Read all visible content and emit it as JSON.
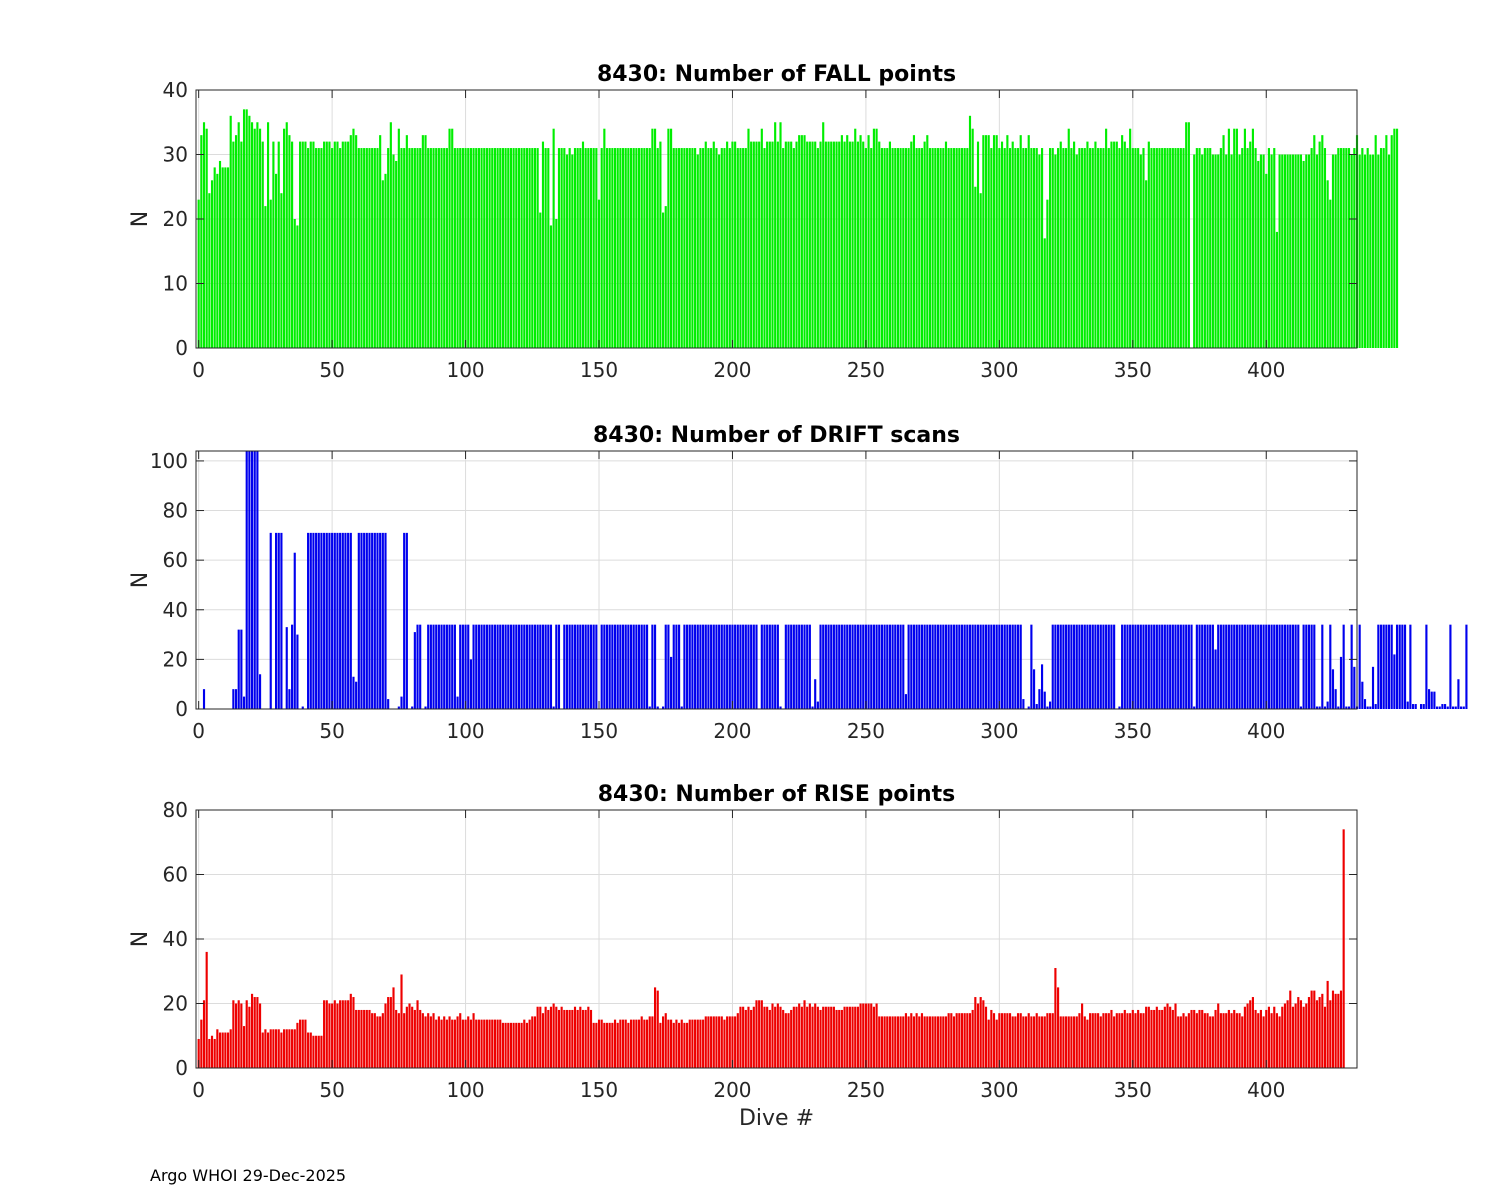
{
  "footer": "Argo WHOI 29-Dec-2025",
  "chart_data": [
    {
      "type": "bar",
      "title": "8430: Number of FALL points",
      "xlabel": "",
      "ylabel": "N",
      "color": "#00ee00",
      "xlim": [
        -1,
        434
      ],
      "ylim": [
        0,
        40
      ],
      "xticks": [
        0,
        50,
        100,
        150,
        200,
        250,
        300,
        350,
        400
      ],
      "yticks": [
        0,
        10,
        20,
        30,
        40
      ],
      "grid": true,
      "x_start": 0,
      "values": [
        23,
        33,
        35,
        34,
        24,
        26,
        28,
        27,
        29,
        28,
        28,
        28,
        36,
        32,
        33,
        35,
        32,
        37,
        37,
        36,
        35,
        34,
        35,
        34,
        32,
        22,
        35,
        23,
        32,
        27,
        32,
        24,
        34,
        35,
        33,
        32,
        20,
        19,
        32,
        32,
        32,
        31,
        32,
        32,
        31,
        31,
        31,
        32,
        32,
        32,
        31,
        32,
        32,
        31,
        32,
        32,
        32,
        33,
        34,
        33,
        31,
        31,
        31,
        31,
        31,
        31,
        31,
        31,
        33,
        26,
        27,
        31,
        35,
        30,
        29,
        34,
        31,
        31,
        33,
        31,
        31,
        31,
        31,
        31,
        33,
        33,
        31,
        31,
        31,
        31,
        31,
        31,
        31,
        31,
        34,
        34,
        31,
        31,
        31,
        31,
        31,
        31,
        31,
        31,
        31,
        31,
        31,
        31,
        31,
        31,
        31,
        31,
        31,
        31,
        31,
        31,
        31,
        31,
        31,
        31,
        31,
        31,
        31,
        31,
        31,
        31,
        31,
        31,
        21,
        32,
        31,
        31,
        19,
        34,
        20,
        31,
        31,
        31,
        30,
        31,
        30,
        31,
        31,
        31,
        32,
        31,
        31,
        31,
        31,
        31,
        23,
        31,
        34,
        31,
        31,
        31,
        31,
        31,
        31,
        31,
        31,
        31,
        31,
        31,
        31,
        31,
        31,
        31,
        31,
        31,
        34,
        34,
        31,
        32,
        21,
        22,
        34,
        34,
        31,
        31,
        31,
        31,
        31,
        31,
        31,
        31,
        31,
        30,
        31,
        31,
        32,
        31,
        31,
        32,
        31,
        30,
        31,
        31,
        32,
        31,
        32,
        32,
        31,
        31,
        31,
        31,
        34,
        32,
        32,
        32,
        32,
        34,
        31,
        32,
        32,
        32,
        35,
        32,
        35,
        31,
        32,
        32,
        32,
        31,
        32,
        33,
        33,
        33,
        32,
        32,
        32,
        32,
        31,
        32,
        35,
        32,
        32,
        32,
        32,
        32,
        32,
        33,
        32,
        33,
        32,
        32,
        34,
        32,
        33,
        32,
        31,
        33,
        31,
        34,
        34,
        32,
        31,
        31,
        31,
        32,
        31,
        31,
        31,
        31,
        31,
        31,
        31,
        32,
        33,
        31,
        31,
        31,
        32,
        33,
        31,
        31,
        31,
        31,
        31,
        31,
        32,
        31,
        31,
        31,
        31,
        31,
        31,
        31,
        31,
        36,
        34,
        25,
        32,
        24,
        33,
        33,
        33,
        31,
        33,
        33,
        31,
        32,
        31,
        33,
        31,
        32,
        31,
        31,
        33,
        31,
        31,
        33,
        31,
        31,
        31,
        30,
        31,
        17,
        23,
        31,
        31,
        30,
        31,
        32,
        31,
        31,
        34,
        31,
        32,
        30,
        31,
        31,
        31,
        32,
        31,
        31,
        32,
        31,
        31,
        31,
        34,
        31,
        32,
        32,
        32,
        31,
        33,
        32,
        31,
        34,
        31,
        31,
        31,
        30,
        31,
        26,
        32,
        31,
        31,
        31,
        31,
        31,
        31,
        31,
        31,
        31,
        31,
        31,
        31,
        31,
        35,
        35,
        0,
        30,
        31,
        31,
        30,
        31,
        31,
        31,
        30,
        30,
        30,
        31,
        33,
        30,
        34,
        30,
        34,
        34,
        30,
        31,
        34,
        31,
        32,
        34,
        31,
        29,
        30,
        30,
        27,
        31,
        30,
        31,
        18,
        30,
        30,
        30,
        30,
        30,
        30,
        30,
        30,
        30,
        29,
        30,
        30,
        31,
        33,
        30,
        32,
        33,
        31,
        26,
        23,
        30,
        30,
        31,
        31,
        31,
        31,
        31,
        30,
        31,
        33,
        30,
        31,
        30,
        31,
        30,
        30,
        33,
        30,
        31,
        31,
        33,
        30,
        33,
        34,
        34
      ]
    },
    {
      "type": "bar",
      "title": "8430: Number of DRIFT scans",
      "xlabel": "",
      "ylabel": "N",
      "color": "#0000ee",
      "xlim": [
        -1,
        434
      ],
      "ylim": [
        0,
        104
      ],
      "xticks": [
        0,
        50,
        100,
        150,
        200,
        250,
        300,
        350,
        400
      ],
      "yticks": [
        0,
        20,
        40,
        60,
        80,
        100
      ],
      "grid": true,
      "x_start": 0,
      "values": [
        0,
        0,
        8,
        0,
        0,
        0,
        0,
        0,
        0,
        0,
        0,
        0,
        0,
        8,
        8,
        32,
        32,
        5,
        104,
        104,
        104,
        104,
        104,
        14,
        0,
        0,
        0,
        71,
        0,
        71,
        71,
        71,
        0,
        33,
        8,
        34,
        63,
        30,
        0,
        1,
        0,
        71,
        71,
        71,
        71,
        71,
        71,
        71,
        71,
        71,
        71,
        71,
        71,
        71,
        71,
        71,
        71,
        71,
        13,
        11,
        71,
        71,
        71,
        71,
        71,
        71,
        71,
        71,
        71,
        71,
        71,
        4,
        0,
        0,
        0,
        1,
        5,
        71,
        71,
        0,
        1,
        31,
        34,
        34,
        0,
        1,
        34,
        34,
        34,
        34,
        34,
        34,
        34,
        34,
        34,
        34,
        34,
        5,
        34,
        34,
        34,
        34,
        20,
        34,
        34,
        34,
        34,
        34,
        34,
        34,
        34,
        34,
        34,
        34,
        34,
        34,
        34,
        34,
        34,
        34,
        34,
        34,
        34,
        34,
        34,
        34,
        34,
        34,
        34,
        34,
        34,
        34,
        34,
        1,
        34,
        34,
        0,
        34,
        34,
        34,
        34,
        34,
        34,
        34,
        34,
        34,
        34,
        34,
        34,
        34,
        0,
        34,
        34,
        34,
        34,
        34,
        34,
        34,
        34,
        34,
        34,
        34,
        34,
        34,
        34,
        34,
        34,
        34,
        34,
        1,
        34,
        34,
        1,
        0,
        1,
        34,
        34,
        21,
        34,
        34,
        34,
        1,
        34,
        34,
        34,
        34,
        34,
        34,
        34,
        34,
        34,
        34,
        34,
        34,
        34,
        34,
        34,
        34,
        34,
        34,
        34,
        34,
        34,
        34,
        34,
        34,
        34,
        34,
        34,
        34,
        0,
        34,
        34,
        34,
        34,
        34,
        34,
        34,
        1,
        0,
        34,
        34,
        34,
        34,
        34,
        34,
        34,
        34,
        34,
        34,
        1,
        12,
        3,
        34,
        34,
        34,
        34,
        34,
        34,
        34,
        34,
        34,
        34,
        34,
        34,
        34,
        34,
        34,
        34,
        34,
        34,
        34,
        34,
        34,
        34,
        34,
        34,
        34,
        34,
        34,
        34,
        34,
        34,
        34,
        34,
        6,
        34,
        34,
        34,
        34,
        34,
        34,
        34,
        34,
        34,
        34,
        34,
        34,
        34,
        34,
        34,
        34,
        34,
        34,
        34,
        34,
        34,
        34,
        34,
        34,
        34,
        34,
        34,
        34,
        34,
        34,
        34,
        34,
        34,
        34,
        34,
        34,
        34,
        34,
        34,
        34,
        34,
        34,
        34,
        4,
        0,
        1,
        34,
        16,
        2,
        8,
        18,
        7,
        1,
        3,
        34,
        34,
        34,
        34,
        34,
        34,
        34,
        34,
        34,
        34,
        34,
        34,
        34,
        34,
        34,
        34,
        34,
        34,
        34,
        34,
        34,
        34,
        34,
        34,
        0,
        1,
        34,
        34,
        34,
        34,
        34,
        34,
        34,
        34,
        34,
        34,
        34,
        34,
        34,
        34,
        34,
        34,
        34,
        34,
        34,
        34,
        34,
        34,
        34,
        34,
        34,
        34,
        34,
        1,
        34,
        34,
        34,
        34,
        34,
        34,
        34,
        24,
        34,
        34,
        34,
        34,
        34,
        34,
        34,
        34,
        34,
        34,
        34,
        34,
        34,
        34,
        34,
        34,
        34,
        34,
        34,
        34,
        34,
        34,
        34,
        34,
        34,
        34,
        34,
        34,
        34,
        34,
        34,
        1,
        34,
        34,
        34,
        34,
        34,
        1,
        1,
        34,
        1,
        3,
        34,
        16,
        8,
        1,
        21,
        34,
        1,
        1,
        34,
        17,
        1,
        34,
        11,
        4,
        1,
        1,
        17,
        2,
        34,
        34,
        34,
        34,
        34,
        34,
        22,
        34,
        34,
        34,
        34,
        3,
        34,
        2,
        2,
        0,
        2,
        2,
        34,
        8,
        7,
        7,
        1,
        1,
        2,
        2,
        1,
        34,
        1,
        1,
        12,
        1,
        1,
        34
      ]
    },
    {
      "type": "bar",
      "title": "8430: Number of RISE points",
      "xlabel": "Dive #",
      "ylabel": "N",
      "color": "#ee0000",
      "xlim": [
        -1,
        434
      ],
      "ylim": [
        0,
        80
      ],
      "xticks": [
        0,
        50,
        100,
        150,
        200,
        250,
        300,
        350,
        400
      ],
      "yticks": [
        0,
        20,
        40,
        60,
        80
      ],
      "grid": true,
      "x_start": 0,
      "values": [
        9,
        15,
        21,
        36,
        9,
        10,
        9,
        12,
        11,
        11,
        11,
        11,
        12,
        21,
        20,
        21,
        20,
        13,
        21,
        19,
        23,
        22,
        22,
        20,
        11,
        12,
        11,
        12,
        12,
        12,
        12,
        11,
        12,
        12,
        12,
        12,
        12,
        14,
        15,
        15,
        15,
        11,
        11,
        10,
        10,
        10,
        10,
        21,
        21,
        20,
        20,
        21,
        20,
        21,
        21,
        21,
        21,
        23,
        22,
        18,
        18,
        18,
        18,
        18,
        18,
        17,
        17,
        16,
        16,
        17,
        20,
        22,
        22,
        25,
        18,
        17,
        29,
        17,
        19,
        20,
        19,
        18,
        21,
        18,
        17,
        16,
        17,
        16,
        17,
        15,
        16,
        15,
        16,
        15,
        16,
        15,
        15,
        16,
        17,
        15,
        15,
        16,
        15,
        17,
        15,
        15,
        15,
        15,
        15,
        15,
        15,
        15,
        15,
        15,
        14,
        14,
        14,
        14,
        14,
        14,
        14,
        14,
        15,
        14,
        15,
        16,
        16,
        19,
        19,
        17,
        19,
        18,
        19,
        20,
        19,
        18,
        19,
        18,
        18,
        18,
        18,
        19,
        18,
        19,
        18,
        18,
        19,
        18,
        14,
        14,
        15,
        15,
        14,
        14,
        14,
        14,
        15,
        14,
        15,
        15,
        15,
        14,
        15,
        15,
        15,
        15,
        16,
        15,
        15,
        16,
        16,
        25,
        24,
        14,
        16,
        17,
        15,
        15,
        14,
        15,
        14,
        15,
        14,
        14,
        15,
        15,
        15,
        15,
        15,
        15,
        16,
        16,
        16,
        16,
        16,
        16,
        16,
        15,
        16,
        16,
        16,
        16,
        17,
        19,
        19,
        18,
        19,
        18,
        19,
        21,
        21,
        21,
        19,
        19,
        18,
        20,
        19,
        20,
        19,
        18,
        17,
        17,
        18,
        19,
        19,
        20,
        19,
        21,
        19,
        20,
        19,
        20,
        19,
        18,
        19,
        19,
        19,
        19,
        19,
        18,
        18,
        18,
        19,
        19,
        19,
        19,
        19,
        19,
        20,
        20,
        20,
        20,
        20,
        19,
        20,
        16,
        16,
        16,
        16,
        16,
        16,
        16,
        16,
        16,
        16,
        17,
        16,
        17,
        16,
        17,
        16,
        17,
        16,
        16,
        16,
        16,
        16,
        16,
        16,
        16,
        16,
        17,
        17,
        16,
        17,
        17,
        17,
        17,
        17,
        17,
        18,
        22,
        20,
        22,
        21,
        19,
        15,
        18,
        17,
        15,
        17,
        17,
        17,
        17,
        17,
        16,
        16,
        17,
        17,
        16,
        16,
        17,
        16,
        16,
        17,
        16,
        16,
        16,
        17,
        17,
        17,
        31,
        25,
        16,
        16,
        16,
        16,
        16,
        16,
        16,
        17,
        20,
        16,
        15,
        17,
        17,
        17,
        17,
        16,
        17,
        17,
        17,
        18,
        16,
        17,
        17,
        17,
        18,
        17,
        17,
        18,
        17,
        18,
        17,
        17,
        19,
        19,
        18,
        18,
        19,
        18,
        18,
        19,
        20,
        19,
        18,
        20,
        16,
        16,
        17,
        16,
        17,
        18,
        18,
        17,
        18,
        18,
        17,
        17,
        16,
        16,
        18,
        20,
        17,
        17,
        17,
        18,
        17,
        18,
        17,
        17,
        16,
        19,
        20,
        21,
        22,
        18,
        17,
        18,
        16,
        18,
        19,
        17,
        19,
        17,
        16,
        19,
        20,
        21,
        24,
        19,
        20,
        22,
        21,
        19,
        20,
        22,
        24,
        24,
        21,
        22,
        23,
        19,
        27,
        21,
        24,
        23,
        23,
        24,
        74
      ]
    }
  ]
}
